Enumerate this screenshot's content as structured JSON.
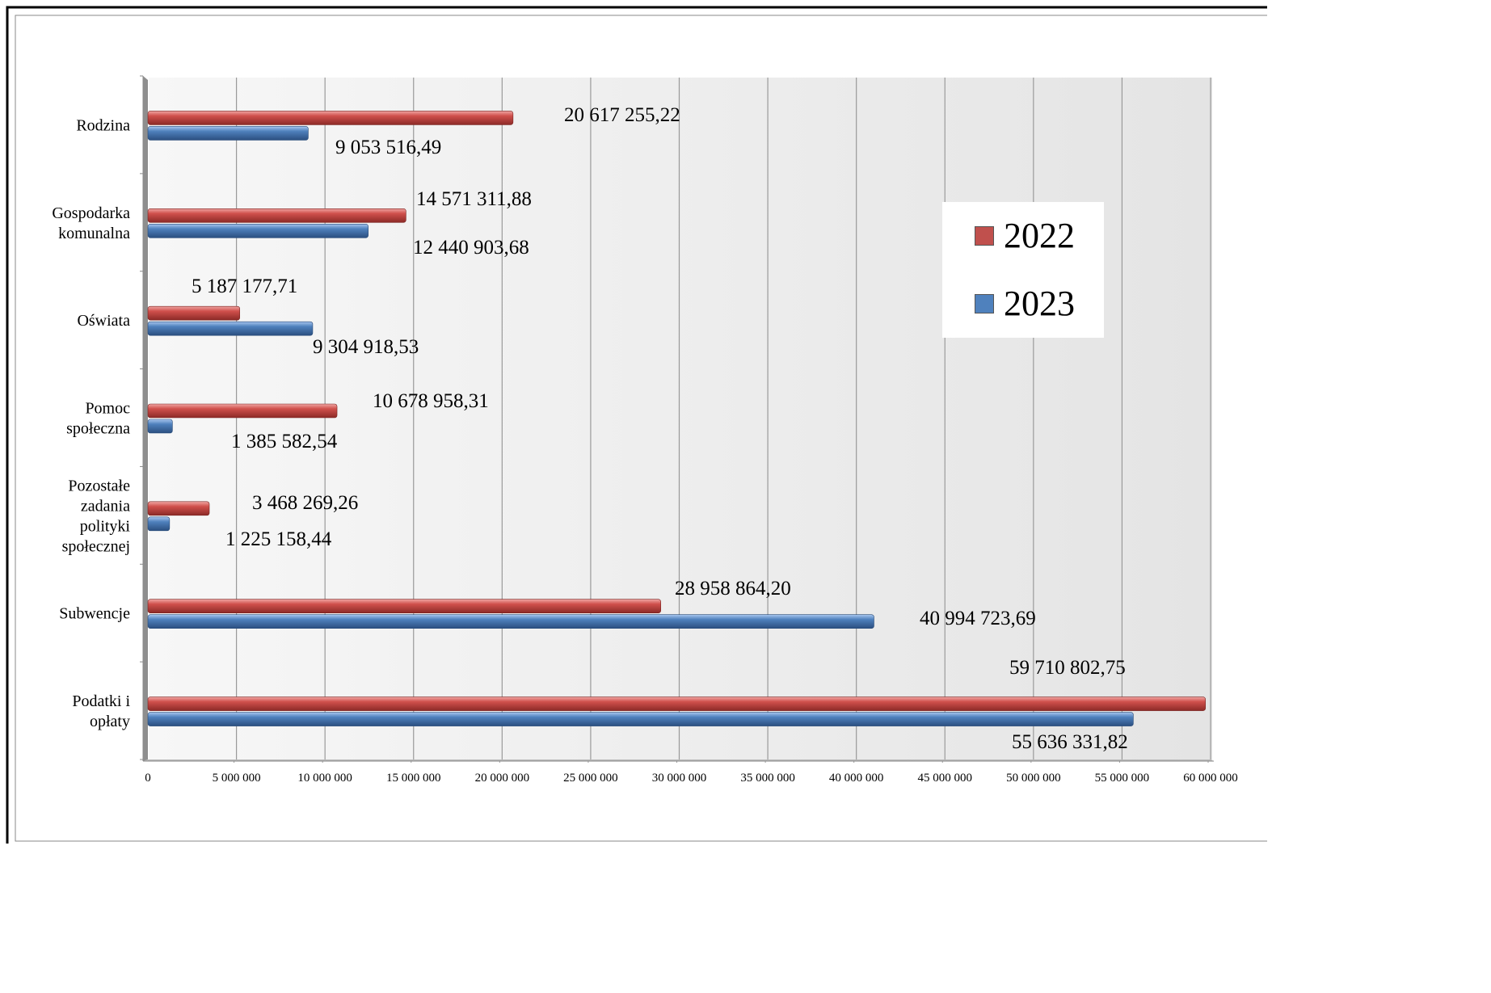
{
  "chart_data": {
    "type": "bar",
    "orientation": "horizontal",
    "categories": [
      "Rodzina",
      "Gospodarka komunalna",
      "Oświata",
      "Pomoc społeczna",
      "Pozostałe zadania polityki społecznej",
      "Subwencje",
      "Podatki i opłaty"
    ],
    "category_lines": [
      [
        "Rodzina"
      ],
      [
        "Gospodarka",
        "komunalna"
      ],
      [
        "Oświata"
      ],
      [
        "Pomoc",
        "społeczna"
      ],
      [
        "Pozostałe",
        "zadania",
        "polityki",
        "społecznej"
      ],
      [
        "Subwencje"
      ],
      [
        "Podatki i",
        "opłaty"
      ]
    ],
    "series": [
      {
        "name": "2022",
        "color": "#c0504d",
        "values": [
          20617255.22,
          14571311.88,
          5187177.71,
          10678958.31,
          3468269.26,
          28958864.2,
          59710802.75
        ],
        "labels": [
          "20 617 255,22",
          "14 571 311,88",
          "5 187 177,71",
          "10 678 958,31",
          "3 468 269,26",
          "28 958 864,20",
          "59 710 802,75"
        ]
      },
      {
        "name": "2023",
        "color": "#4f81bd",
        "values": [
          9053516.49,
          12440903.68,
          9304918.53,
          1385582.54,
          1225158.44,
          40994723.69,
          55636331.82
        ],
        "labels": [
          "9 053 516,49",
          "12 440 903,68",
          "9 304 918,53",
          "1 385 582,54",
          "1 225 158,44",
          "40 994 723,69",
          "55 636 331,82"
        ]
      }
    ],
    "x_ticks": [
      0,
      5000000,
      10000000,
      15000000,
      20000000,
      25000000,
      30000000,
      35000000,
      40000000,
      45000000,
      50000000,
      55000000,
      60000000
    ],
    "x_tick_labels": [
      "0",
      "5 000 000",
      "10 000 000",
      "15 000 000",
      "20 000 000",
      "25 000 000",
      "30 000 000",
      "35 000 000",
      "40 000 000",
      "45 000 000",
      "50 000 000",
      "55 000 000",
      "60 000 000"
    ],
    "xlim": [
      0,
      60000000
    ],
    "title": "",
    "xlabel": "",
    "ylabel": "",
    "grid": true,
    "legend": "right"
  }
}
